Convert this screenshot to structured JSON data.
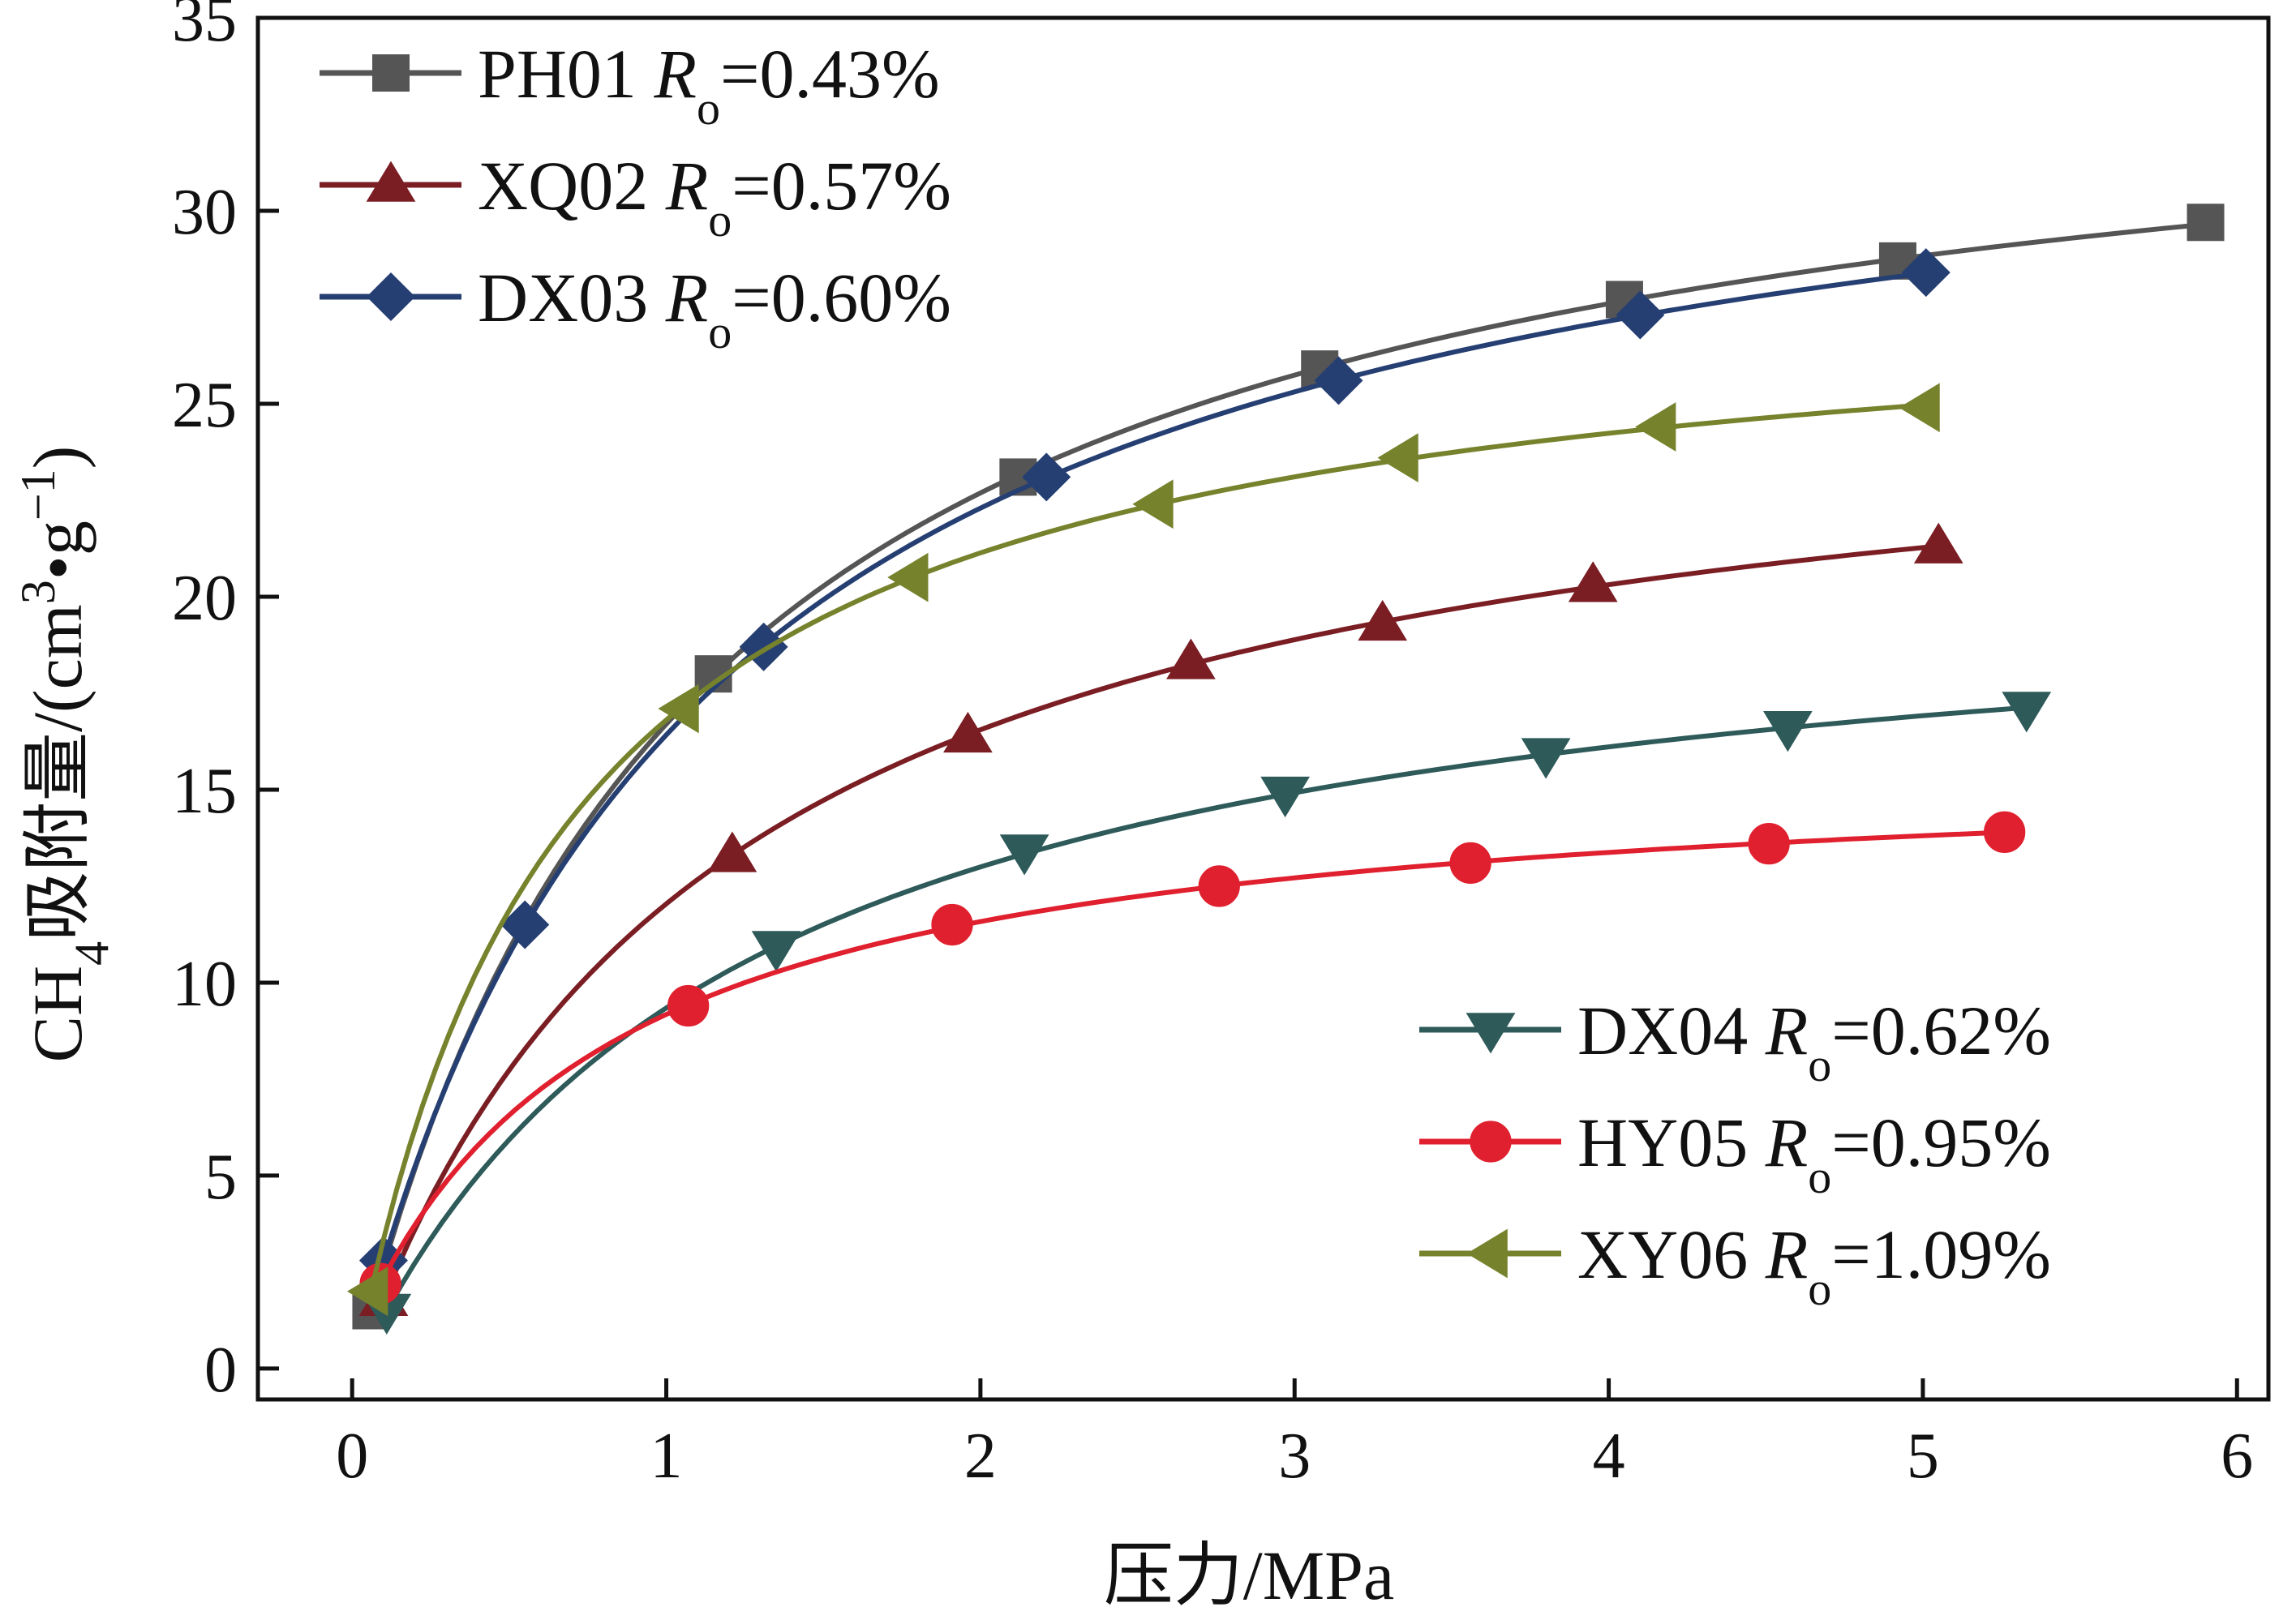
{
  "chart_data": {
    "type": "line",
    "title": "",
    "xlabel": "压力/MPa",
    "ylabel": "CH4吸附量/(cm3•g−1)",
    "ylabel_parts": {
      "a": "CH",
      "a_sub": "4",
      "b": "吸附量/(cm",
      "b_sup": "3",
      "c": "•g",
      "c_sup": "−1",
      "d": ")"
    },
    "xlim": [
      -0.3,
      6.1
    ],
    "ylim": [
      -0.8,
      35
    ],
    "xticks": [
      0,
      1,
      2,
      3,
      4,
      5,
      6
    ],
    "yticks": [
      0,
      5,
      10,
      15,
      20,
      25,
      30,
      35
    ],
    "grid": false,
    "legend_placement": [
      "top-left",
      "bottom-right"
    ],
    "series": [
      {
        "name": "PH01",
        "ro_label": "R",
        "ro_sub": "o",
        "ro_value": "=0.43%",
        "color": "#555555",
        "marker": "square",
        "legend_group": 0,
        "x": [
          0.06,
          1.15,
          2.12,
          3.08,
          4.05,
          4.92,
          5.9
        ],
        "y": [
          1.5,
          18.0,
          23.1,
          25.9,
          27.7,
          28.7,
          29.7
        ]
      },
      {
        "name": "XQ02",
        "ro_label": "R",
        "ro_sub": "o",
        "ro_value": "=0.57%",
        "color": "#7b1e24",
        "marker": "triangle-up",
        "legend_group": 0,
        "x": [
          0.1,
          1.21,
          1.96,
          2.67,
          3.28,
          3.95,
          5.05
        ],
        "y": [
          1.8,
          13.3,
          16.4,
          18.3,
          19.3,
          20.3,
          21.3
        ]
      },
      {
        "name": "DX03",
        "ro_label": "R",
        "ro_sub": "o",
        "ro_value": "=0.60%",
        "color": "#263f73",
        "marker": "diamond",
        "legend_group": 0,
        "x": [
          0.1,
          0.55,
          1.31,
          2.21,
          3.14,
          4.1,
          5.01
        ],
        "y": [
          2.8,
          11.5,
          18.7,
          23.1,
          25.6,
          27.3,
          28.4
        ]
      },
      {
        "name": "DX04",
        "ro_label": "R",
        "ro_sub": "o",
        "ro_value": "=0.62%",
        "color": "#2e5a5a",
        "marker": "triangle-down",
        "legend_group": 1,
        "x": [
          0.11,
          1.35,
          2.14,
          2.97,
          3.8,
          4.57,
          5.33
        ],
        "y": [
          1.5,
          10.9,
          13.4,
          14.9,
          15.9,
          16.6,
          17.1
        ]
      },
      {
        "name": "HY05",
        "ro_label": "R",
        "ro_sub": "o",
        "ro_value": "=0.95%",
        "color": "#e0202e",
        "marker": "circle",
        "legend_group": 1,
        "x": [
          0.09,
          1.07,
          1.91,
          2.76,
          3.56,
          4.51,
          5.26
        ],
        "y": [
          2.2,
          9.4,
          11.5,
          12.5,
          13.1,
          13.6,
          13.9
        ]
      },
      {
        "name": "XY06",
        "ro_label": "R",
        "ro_sub": "o",
        "ro_value": "=1.09%",
        "color": "#77822d",
        "marker": "triangle-left",
        "legend_group": 1,
        "x": [
          0.06,
          1.05,
          1.78,
          2.56,
          3.34,
          4.16,
          5.0
        ],
        "y": [
          2.0,
          17.1,
          20.5,
          22.4,
          23.6,
          24.4,
          24.9
        ]
      }
    ]
  }
}
